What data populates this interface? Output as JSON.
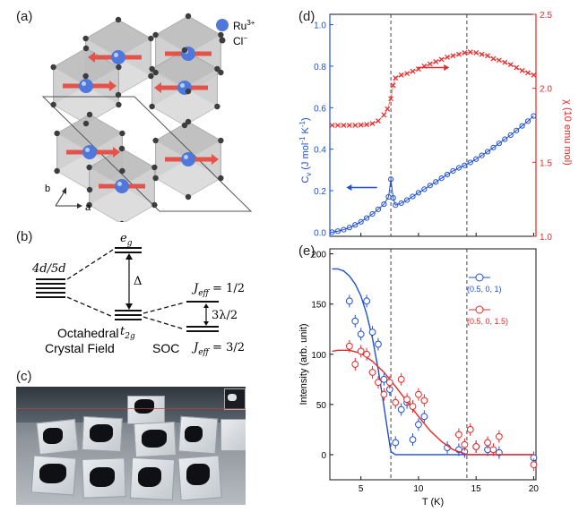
{
  "labels": {
    "a": "(a)",
    "b": "(b)",
    "c": "(c)",
    "d": "(d)",
    "e": "(e)"
  },
  "panel_a": {
    "legend_ru": "Ru",
    "legend_ru_sup": "3+",
    "legend_cl": "Cl",
    "legend_cl_sup": "−",
    "axis_a": "a",
    "axis_b": "b",
    "colors": {
      "ru": "#4f78d8",
      "cl": "#3d3d3d",
      "spin": "#e3534a",
      "octahedron": "#c9c9c9"
    }
  },
  "panel_b": {
    "level_4d": "4d/5d",
    "eg_base": "e",
    "eg_sub": "g",
    "t2g_base": "t",
    "t2g_sub": "2g",
    "delta": "Δ",
    "jeff_half": "J",
    "jeff_sub": "eff",
    "jeff_half_val": " = 1/2",
    "jeff_32_val": " = 3/2",
    "splitting": "3λ/2",
    "octahedral_line1": "Octahedral",
    "octahedral_line2": "Crystal Field",
    "soc": "SOC"
  },
  "chart_data": [
    {
      "type": "line",
      "panel": "(d)",
      "xlim": [
        2.3,
        20.2
      ],
      "ylim_left": [
        -0.02,
        1.05
      ],
      "ylim_right": [
        1.0,
        2.5
      ],
      "left_ticks": [
        "0.0",
        "0.2",
        "0.4",
        "0.6",
        "0.8",
        "1.0"
      ],
      "right_ticks": [
        "1.0",
        "1.5",
        "2.0",
        "2.5"
      ],
      "ylabel_left": "C",
      "ylabel_left_sub": "v",
      "ylabel_left_rest": " (J mol",
      "ylabel_left_sup1": "-1",
      "ylabel_left_k": " K",
      "ylabel_left_sup2": "-1",
      "ylabel_left_end": ")",
      "ylabel_right": "χ (10",
      "ylabel_right_rest": "  emu mol",
      "ylabel_right_end": ")",
      "vlines_x": [
        7.6,
        14.2
      ],
      "series": [
        {
          "color": "#1f4fd8",
          "x": [
            2.5,
            3.0,
            3.5,
            4.0,
            4.5,
            5.0,
            5.5,
            6.0,
            6.5,
            7.0,
            7.4,
            7.6,
            7.8,
            8.0,
            8.5,
            9.0,
            9.5,
            10.0,
            10.5,
            11.0,
            11.5,
            12.0,
            12.5,
            13.0,
            13.5,
            14.0,
            14.5,
            15.0,
            15.5,
            16.0,
            16.5,
            17.0,
            17.5,
            18.0,
            18.5,
            19.0,
            19.5,
            20.0
          ],
          "values": [
            0.0,
            0.005,
            0.012,
            0.022,
            0.035,
            0.05,
            0.068,
            0.088,
            0.11,
            0.135,
            0.17,
            0.255,
            0.165,
            0.13,
            0.14,
            0.155,
            0.172,
            0.19,
            0.207,
            0.225,
            0.242,
            0.26,
            0.278,
            0.295,
            0.31,
            0.322,
            0.336,
            0.352,
            0.37,
            0.388,
            0.408,
            0.428,
            0.448,
            0.468,
            0.49,
            0.512,
            0.535,
            0.56
          ]
        },
        {
          "color": "#e82727",
          "axis": "right",
          "x": [
            2.5,
            3.0,
            3.5,
            4.0,
            4.5,
            5.0,
            5.5,
            6.0,
            6.5,
            7.0,
            7.3,
            7.6,
            7.8,
            8.0,
            8.5,
            9.0,
            9.5,
            10.0,
            10.5,
            11.0,
            11.5,
            12.0,
            12.5,
            13.0,
            13.5,
            14.0,
            14.5,
            15.0,
            15.5,
            16.0,
            16.5,
            17.0,
            17.5,
            18.0,
            18.5,
            19.0,
            19.5,
            20.0
          ],
          "values": [
            1.75,
            1.75,
            1.75,
            1.75,
            1.75,
            1.752,
            1.755,
            1.762,
            1.78,
            1.82,
            1.86,
            1.93,
            2.02,
            2.07,
            2.09,
            2.1,
            2.115,
            2.13,
            2.15,
            2.165,
            2.18,
            2.195,
            2.21,
            2.22,
            2.23,
            2.24,
            2.245,
            2.24,
            2.23,
            2.22,
            2.2,
            2.19,
            2.175,
            2.16,
            2.14,
            2.12,
            2.105,
            2.09
          ]
        }
      ]
    },
    {
      "type": "scatter",
      "panel": "(e)",
      "xlim": [
        2.3,
        20.2
      ],
      "ylim": [
        -25,
        205
      ],
      "x_ticks": [
        "5",
        "10",
        "15",
        "20"
      ],
      "y_ticks": [
        "0",
        "50",
        "100",
        "150",
        "200"
      ],
      "xlabel": "T (K)",
      "ylabel": "Intensity (arb. unit)",
      "vlines_x": [
        7.6,
        14.2
      ],
      "series": [
        {
          "name": "(0.5, 0, 1)",
          "color": "#1f4fd8",
          "x": [
            4.0,
            4.5,
            5.0,
            5.5,
            6.0,
            6.5,
            7.0,
            7.5,
            8.0,
            8.5,
            9.0,
            9.5,
            10.0,
            10.5,
            12.5,
            13.5,
            14.0,
            15.0,
            16.0,
            17.0,
            20.0
          ],
          "values": [
            153,
            133,
            120,
            153,
            122,
            110,
            75,
            65,
            12,
            45,
            52,
            15,
            30,
            38,
            7,
            5,
            3,
            8,
            5,
            2,
            -3
          ],
          "fit_x": [
            2.5,
            3.0,
            3.5,
            4.0,
            4.5,
            5.0,
            5.5,
            6.0,
            6.5,
            7.0,
            7.3,
            7.6,
            8.0,
            20.0
          ],
          "fit": [
            185,
            185,
            183,
            178,
            170,
            158,
            140,
            116,
            85,
            48,
            25,
            3,
            0,
            0
          ]
        },
        {
          "name": "(0.5, 0, 1.5)",
          "color": "#e82727",
          "x": [
            4.0,
            4.5,
            5.0,
            5.5,
            6.0,
            6.5,
            7.0,
            7.5,
            8.0,
            8.5,
            9.0,
            9.5,
            10.0,
            10.5,
            13.5,
            14.0,
            14.5,
            15.0,
            16.0,
            16.5,
            17.0,
            20.0
          ],
          "values": [
            108,
            90,
            103,
            100,
            82,
            72,
            60,
            72,
            52,
            75,
            55,
            48,
            60,
            54,
            20,
            10,
            25,
            8,
            12,
            5,
            18,
            -10
          ],
          "fit_x": [
            2.5,
            3.0,
            4.0,
            5.0,
            6.0,
            7.0,
            8.0,
            9.0,
            10.0,
            11.0,
            12.0,
            13.0,
            14.0,
            14.2,
            20.0
          ],
          "fit": [
            103,
            104,
            104,
            101,
            93,
            82,
            68,
            53,
            38,
            24,
            13,
            5,
            1,
            0,
            0
          ]
        }
      ]
    }
  ]
}
